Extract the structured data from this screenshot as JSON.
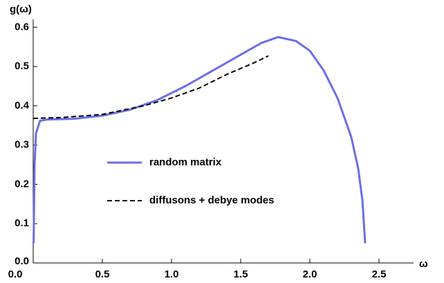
{
  "chart_data": {
    "type": "line",
    "xlabel": "ω",
    "ylabel": "g(ω)",
    "xlim": [
      0,
      2.75
    ],
    "ylim": [
      0,
      0.62
    ],
    "xticks": [
      {
        "value": 0,
        "label": "0.0"
      },
      0.5,
      {
        "value": 1,
        "label": "1.0"
      },
      1.5,
      {
        "value": 2,
        "label": "2.0"
      },
      2.5
    ],
    "yticks": [
      {
        "value": 0,
        "label": "0.0"
      },
      0.1,
      0.2,
      0.3,
      0.4,
      0.5,
      0.6
    ],
    "legend": "center",
    "series": [
      {
        "name": "random matrix",
        "color": "#6a6ee6",
        "dash": false,
        "x": [
          0.003,
          0.01,
          0.02,
          0.05,
          0.1,
          0.3,
          0.5,
          0.7,
          0.9,
          1.1,
          1.3,
          1.5,
          1.65,
          1.77,
          1.9,
          2.0,
          2.1,
          2.2,
          2.3,
          2.35,
          2.38,
          2.4
        ],
        "values": [
          0.05,
          0.25,
          0.33,
          0.362,
          0.365,
          0.367,
          0.375,
          0.39,
          0.415,
          0.45,
          0.49,
          0.53,
          0.56,
          0.575,
          0.565,
          0.54,
          0.49,
          0.42,
          0.32,
          0.24,
          0.16,
          0.05
        ]
      },
      {
        "name": "diffusons + debye modes",
        "color": "#000000",
        "dash": true,
        "x": [
          0,
          0.2,
          0.5,
          0.8,
          1.0,
          1.2,
          1.4,
          1.6,
          1.7
        ],
        "values": [
          0.368,
          0.37,
          0.378,
          0.4,
          0.42,
          0.445,
          0.48,
          0.51,
          0.527
        ]
      }
    ]
  }
}
